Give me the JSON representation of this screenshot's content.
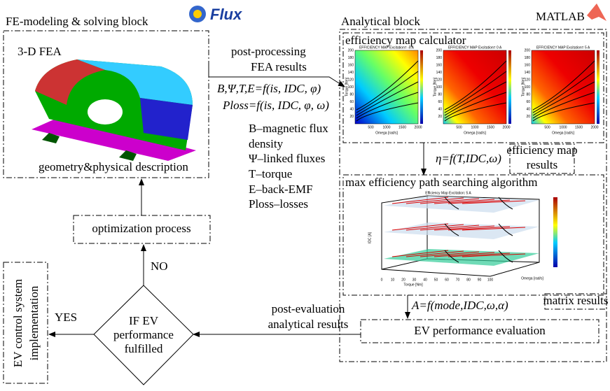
{
  "fe_block": {
    "title": "FE-modeling & solving block",
    "fea_label": "3-D FEA",
    "description": "geometry&physical description"
  },
  "flux_logo": "Flux",
  "analytical_block": {
    "title": "Analytical block",
    "matlab": "MATLAB"
  },
  "efficiency_map_calculator": {
    "title": "efficiency map calculator",
    "maps": [
      {
        "title": "EFFICIENCY MAP  Excitation= -5 A"
      },
      {
        "title": "EFFICIENCY MAP  Excitation= 0 A"
      },
      {
        "title": "EFFICIENCY MAP  Excitation= 5 A"
      }
    ],
    "xlabel": "Omega [rad/s]",
    "ylabel": "Torque [Nm]",
    "xticks": [
      "500",
      "1000",
      "1500",
      "2000"
    ],
    "yticks": [
      "20",
      "40",
      "60",
      "80",
      "100",
      "120",
      "140",
      "160",
      "180",
      "200"
    ]
  },
  "post_processing": [
    "post-processing",
    "FEA results"
  ],
  "formula_1": "B,Ψ,T,E=f(is, IDC, φ)",
  "formula_2": "Ploss=f(is, IDC, φ, ω)",
  "legend": [
    "B–magnetic flux",
    "density",
    "Ψ–linked fluxes",
    "T–torque",
    "E–back-EMF",
    "Ploss–losses"
  ],
  "eta_formula": "η=f(T,IDC,ω)",
  "efficiency_map_results": [
    "efficiency map",
    "results"
  ],
  "max_efficiency": {
    "title": "max efficiency path searching algorithm",
    "plot_title": "Efficiency Map   Excitation: 5 A",
    "xlabel": "Torque [Nm]",
    "ylabel": "Omega [rad/s]",
    "zlabel": "IDC [A]",
    "xticks": [
      "0",
      "10",
      "20",
      "30",
      "40",
      "50",
      "60",
      "70",
      "80",
      "90",
      "100"
    ]
  },
  "matrix_results": "matrix results",
  "a_formula": "A=f(mode,IDC,ω,α)",
  "ev_performance": "EV performance  evaluation",
  "post_evaluation": [
    "post-evaluation",
    "analytical results"
  ],
  "decision": [
    "IF EV",
    "performance",
    "fulfilled"
  ],
  "no": "NO",
  "yes": "YES",
  "optimization": "optimization process",
  "ev_control": [
    "EV control system",
    "implementation"
  ]
}
